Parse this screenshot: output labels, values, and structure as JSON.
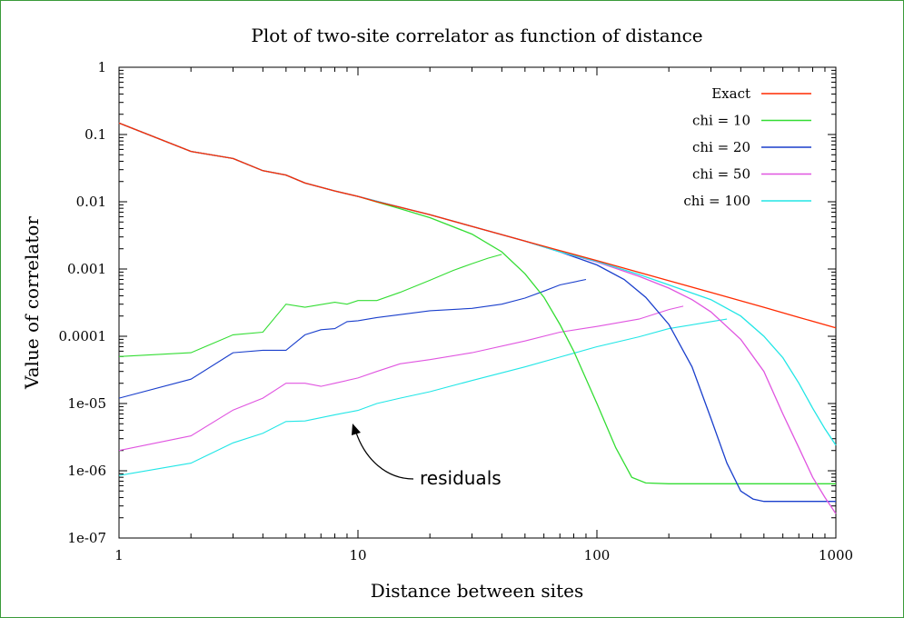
{
  "chart_data": {
    "type": "line",
    "title": "Plot of two-site correlator as function of distance",
    "xlabel": "Distance between sites",
    "ylabel": "Value of correlator",
    "xscale": "log",
    "yscale": "log",
    "xlim": [
      1,
      1000
    ],
    "ylim": [
      1e-07,
      1
    ],
    "xticks": [
      {
        "value": 1,
        "label": "1"
      },
      {
        "value": 10,
        "label": "10"
      },
      {
        "value": 100,
        "label": "100"
      },
      {
        "value": 1000,
        "label": "1000"
      }
    ],
    "yticks": [
      {
        "value": 1,
        "label": "1"
      },
      {
        "value": 0.1,
        "label": "0.1"
      },
      {
        "value": 0.01,
        "label": "0.01"
      },
      {
        "value": 0.001,
        "label": "0.001"
      },
      {
        "value": 0.0001,
        "label": "0.0001"
      },
      {
        "value": 1e-05,
        "label": "1e-05"
      },
      {
        "value": 1e-06,
        "label": "1e-06"
      },
      {
        "value": 1e-07,
        "label": "1e-07"
      }
    ],
    "grid": false,
    "legend_position": "top-right",
    "annotation": {
      "text": "residuals",
      "x": 60,
      "y": 2.2e-06
    },
    "series": [
      {
        "name": "Exact",
        "color": "#ff2a00",
        "x": [
          1,
          2,
          3,
          4,
          5,
          6,
          8,
          10,
          12,
          15,
          20,
          30,
          50,
          70,
          100,
          200,
          300,
          500,
          700,
          1000
        ],
        "y": [
          0.148,
          0.056,
          0.044,
          0.029,
          0.025,
          0.019,
          0.0145,
          0.012,
          0.01,
          0.0083,
          0.0064,
          0.0043,
          0.0026,
          0.00188,
          0.00133,
          0.00067,
          0.00045,
          0.00027,
          0.000191,
          0.000133
        ]
      },
      {
        "name": "chi = 10",
        "color": "#33dd33",
        "x": [
          1,
          2,
          3,
          4,
          5,
          6,
          8,
          10,
          12,
          15,
          20,
          30,
          40,
          50,
          60,
          70,
          80,
          100,
          120,
          140,
          160,
          200,
          300,
          500,
          1000
        ],
        "y": [
          0.148,
          0.056,
          0.044,
          0.029,
          0.025,
          0.019,
          0.0145,
          0.012,
          0.0099,
          0.0079,
          0.0058,
          0.0033,
          0.0018,
          0.00085,
          0.00038,
          0.00015,
          6e-05,
          1e-05,
          2.2e-06,
          8e-07,
          6.6e-07,
          6.4e-07,
          6.4e-07,
          6.4e-07,
          6.4e-07
        ]
      },
      {
        "name": "chi = 20",
        "color": "#1a3fcc",
        "x": [
          1,
          2,
          3,
          4,
          5,
          6,
          8,
          10,
          15,
          20,
          30,
          50,
          70,
          100,
          130,
          160,
          200,
          250,
          300,
          350,
          400,
          450,
          500,
          700,
          1000
        ],
        "y": [
          0.148,
          0.056,
          0.044,
          0.029,
          0.025,
          0.019,
          0.0145,
          0.012,
          0.0083,
          0.0064,
          0.0043,
          0.0026,
          0.0018,
          0.00115,
          0.0007,
          0.00038,
          0.00015,
          3.5e-05,
          6e-06,
          1.3e-06,
          5e-07,
          3.8e-07,
          3.5e-07,
          3.5e-07,
          3.5e-07
        ]
      },
      {
        "name": "chi = 50",
        "color": "#e055e0",
        "x": [
          1,
          2,
          3,
          4,
          5,
          6,
          8,
          10,
          15,
          20,
          30,
          50,
          70,
          100,
          150,
          200,
          250,
          300,
          400,
          500,
          600,
          700,
          800,
          900,
          1000
        ],
        "y": [
          0.148,
          0.056,
          0.044,
          0.029,
          0.025,
          0.019,
          0.0145,
          0.012,
          0.0083,
          0.0064,
          0.0043,
          0.0026,
          0.0018,
          0.00127,
          0.00078,
          0.00052,
          0.00035,
          0.00023,
          9e-05,
          3e-05,
          7e-06,
          2.2e-06,
          8e-07,
          4e-07,
          2.3e-07
        ]
      },
      {
        "name": "chi = 100",
        "color": "#22e6e6",
        "x": [
          1,
          2,
          3,
          4,
          5,
          6,
          8,
          10,
          15,
          20,
          30,
          50,
          70,
          100,
          150,
          200,
          300,
          400,
          500,
          600,
          700,
          800,
          900,
          1000
        ],
        "y": [
          0.148,
          0.056,
          0.044,
          0.029,
          0.025,
          0.019,
          0.0145,
          0.012,
          0.0083,
          0.0064,
          0.0043,
          0.0026,
          0.0018,
          0.0013,
          0.00083,
          0.00058,
          0.00035,
          0.0002,
          0.0001,
          4.8e-05,
          2e-05,
          8.5e-06,
          4.2e-06,
          2.4e-06
        ]
      }
    ],
    "residual_series": [
      {
        "color": "#33dd33",
        "x": [
          1,
          2,
          3,
          4,
          5,
          6,
          8,
          9,
          10,
          12,
          15,
          20,
          25,
          30,
          35,
          40
        ],
        "y": [
          5e-05,
          5.7e-05,
          0.000105,
          0.000115,
          0.0003,
          0.00027,
          0.00032,
          0.0003,
          0.00034,
          0.00034,
          0.00045,
          0.00068,
          0.00095,
          0.0012,
          0.00145,
          0.00165
        ]
      },
      {
        "color": "#1a3fcc",
        "x": [
          1,
          2,
          3,
          4,
          5,
          6,
          7,
          8,
          9,
          10,
          12,
          15,
          20,
          30,
          40,
          50,
          60,
          70,
          90
        ],
        "y": [
          1.2e-05,
          2.3e-05,
          5.7e-05,
          6.2e-05,
          6.2e-05,
          0.000105,
          0.000125,
          0.00013,
          0.000165,
          0.00017,
          0.00019,
          0.00021,
          0.00024,
          0.00026,
          0.0003,
          0.00037,
          0.00047,
          0.00058,
          0.0007
        ]
      },
      {
        "color": "#e055e0",
        "x": [
          1,
          2,
          3,
          4,
          5,
          6,
          7,
          8,
          10,
          12,
          15,
          20,
          30,
          50,
          70,
          100,
          150,
          200,
          230
        ],
        "y": [
          2e-06,
          3.3e-06,
          8e-06,
          1.2e-05,
          2e-05,
          2e-05,
          1.8e-05,
          2e-05,
          2.4e-05,
          3e-05,
          3.9e-05,
          4.5e-05,
          5.7e-05,
          8.5e-05,
          0.000115,
          0.00014,
          0.00018,
          0.00025,
          0.00028
        ]
      },
      {
        "color": "#22e6e6",
        "x": [
          1,
          2,
          3,
          4,
          5,
          6,
          8,
          10,
          12,
          15,
          20,
          30,
          50,
          70,
          100,
          150,
          200,
          300,
          350
        ],
        "y": [
          8.5e-07,
          1.3e-06,
          2.6e-06,
          3.6e-06,
          5.4e-06,
          5.5e-06,
          6.8e-06,
          7.9e-06,
          1e-05,
          1.2e-05,
          1.5e-05,
          2.2e-05,
          3.5e-05,
          4.9e-05,
          7e-05,
          9.8e-05,
          0.00013,
          0.000165,
          0.00018
        ]
      }
    ]
  }
}
